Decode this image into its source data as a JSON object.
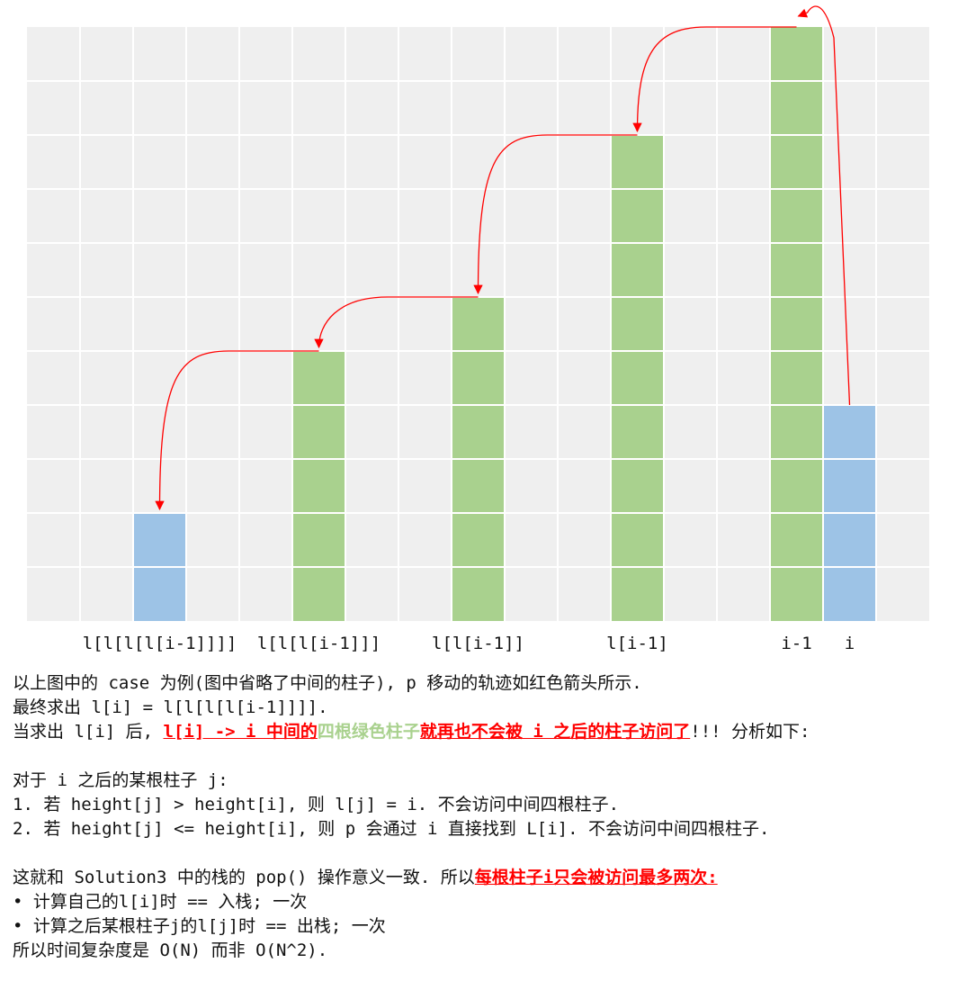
{
  "figure": {
    "rows": 11,
    "cols": 17,
    "colors": {
      "background": "#efefef",
      "grid": "#ffffff",
      "green": "#a9d18e",
      "blue": "#9dc3e6",
      "arrow": "#ff0000"
    },
    "bars": [
      {
        "col": 2,
        "height": 2,
        "color": "blue"
      },
      {
        "col": 5,
        "height": 5,
        "color": "green"
      },
      {
        "col": 8,
        "height": 6,
        "color": "green"
      },
      {
        "col": 11,
        "height": 9,
        "color": "green"
      },
      {
        "col": 14,
        "height": 11,
        "color": "green"
      },
      {
        "col": 15,
        "height": 4,
        "color": "blue"
      }
    ],
    "labels": [
      {
        "col": 2,
        "text": "l[l[l[l[i-1]]]]"
      },
      {
        "col": 5,
        "text": "l[l[l[i-1]]]"
      },
      {
        "col": 8,
        "text": "l[l[i-1]]"
      },
      {
        "col": 11,
        "text": "l[i-1]"
      },
      {
        "col": 14,
        "text": "i-1"
      },
      {
        "col": 15,
        "text": "i"
      }
    ],
    "arrows": [
      {
        "from_col": 15,
        "from_height": 4,
        "to_col": 14,
        "to_height": 11
      },
      {
        "from_col": 14,
        "from_height": 11,
        "to_col": 11,
        "to_height": 9
      },
      {
        "from_col": 11,
        "from_height": 9,
        "to_col": 8,
        "to_height": 6
      },
      {
        "from_col": 8,
        "from_height": 6,
        "to_col": 5,
        "to_height": 5
      },
      {
        "from_col": 5,
        "from_height": 5,
        "to_col": 2,
        "to_height": 2
      }
    ]
  },
  "notes": {
    "line1": "以上图中的 case 为例(图中省略了中间的柱子), p 移动的轨迹如红色箭头所示.",
    "line2": "最终求出 l[i] = l[l[l[l[i-1]]]].",
    "line3": {
      "prefix": "当求出 l[i] 后, ",
      "red1": "l[i] -> i 中间的",
      "green": "四根绿色柱子",
      "red2": "就再也不会被 i 之后的柱子访问了",
      "suffix": "!!! 分析如下:"
    },
    "line4": "对于 i 之后的某根柱子 j:",
    "line5": "1. 若 height[j] > height[i], 则 l[j] = i. 不会访问中间四根柱子.",
    "line6": "2. 若 height[j] <= height[i], 则 p 会通过 i 直接找到 L[i]. 不会访问中间四根柱子.",
    "line7": {
      "prefix": "这就和 Solution3 中的栈的 pop() 操作意义一致. 所以",
      "red": "每根柱子i只会被访问最多两次:"
    },
    "line8": "• 计算自己的l[i]时 == 入栈; 一次",
    "line9": "• 计算之后某根柱子j的l[j]时 == 出栈; 一次",
    "line10": "所以时间复杂度是 O(N) 而非 O(N^2)."
  }
}
